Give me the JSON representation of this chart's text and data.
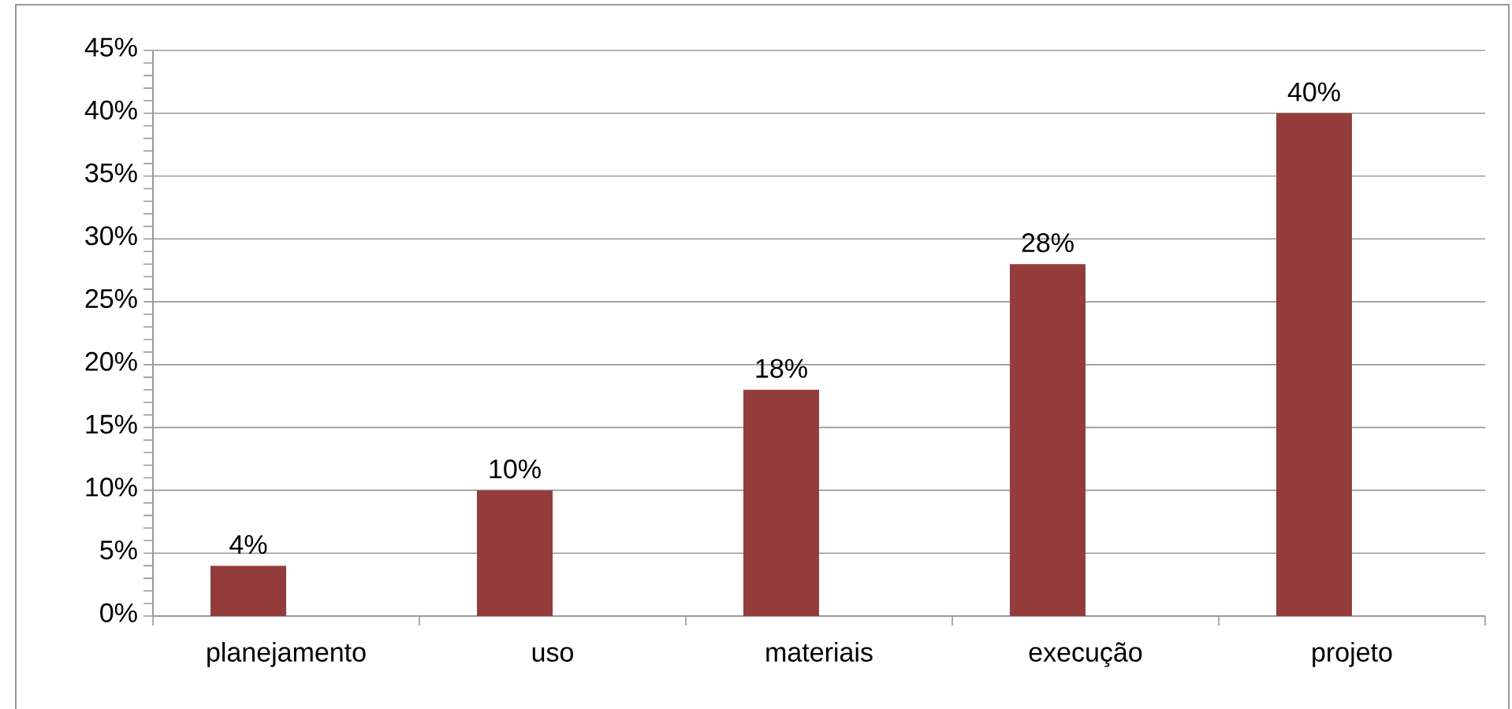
{
  "chart_data": {
    "type": "bar",
    "categories": [
      "planejamento",
      "uso",
      "materiais",
      "execução",
      "projeto"
    ],
    "values": [
      4,
      10,
      18,
      28,
      40
    ],
    "color": "#943c3c",
    "ylim": [
      0,
      45
    ],
    "yticks": [
      {
        "value": 0,
        "label": "0%"
      },
      {
        "value": 5,
        "label": "5%"
      },
      {
        "value": 10,
        "label": "10%"
      },
      {
        "value": 15,
        "label": "15%"
      },
      {
        "value": 20,
        "label": "20%"
      },
      {
        "value": 25,
        "label": "25%"
      },
      {
        "value": 30,
        "label": "30%"
      },
      {
        "value": 35,
        "label": "35%"
      },
      {
        "value": 40,
        "label": "40%"
      },
      {
        "value": 45,
        "label": "45%"
      }
    ],
    "value_labels": [
      "4%",
      "10%",
      "18%",
      "28%",
      "40%"
    ],
    "grid": "y"
  }
}
